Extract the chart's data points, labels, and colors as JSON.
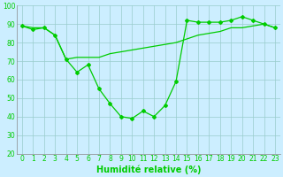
{
  "xlabel": "Humidité relative (%)",
  "x": [
    0,
    1,
    2,
    3,
    4,
    5,
    6,
    7,
    8,
    9,
    10,
    11,
    12,
    13,
    14,
    15,
    16,
    17,
    18,
    19,
    20,
    21,
    22,
    23
  ],
  "line1": [
    89,
    87,
    88,
    84,
    71,
    64,
    68,
    55,
    47,
    40,
    39,
    43,
    40,
    46,
    59,
    92,
    91,
    91,
    91,
    92,
    94,
    92,
    90,
    88
  ],
  "line2": [
    89,
    88,
    88,
    84,
    71,
    72,
    72,
    72,
    74,
    75,
    76,
    77,
    78,
    79,
    80,
    82,
    84,
    85,
    86,
    88,
    88,
    89,
    90,
    88
  ],
  "line_color": "#00cc00",
  "bg_color": "#cceeff",
  "grid_color": "#99cccc",
  "ylim": [
    20,
    100
  ],
  "xlim": [
    -0.5,
    23.5
  ],
  "yticks": [
    20,
    30,
    40,
    50,
    60,
    70,
    80,
    90,
    100
  ],
  "xticks": [
    0,
    1,
    2,
    3,
    4,
    5,
    6,
    7,
    8,
    9,
    10,
    11,
    12,
    13,
    14,
    15,
    16,
    17,
    18,
    19,
    20,
    21,
    22,
    23
  ],
  "tick_fontsize": 5.5,
  "label_fontsize": 7.0
}
